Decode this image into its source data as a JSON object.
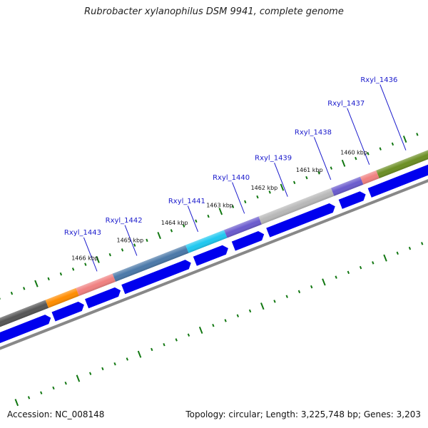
{
  "title": "Rubrobacter xylanophilus DSM 9941, complete genome",
  "footer": {
    "accession": "Accession: NC_008148",
    "summary": "Topology: circular; Length: 3,225,748 bp; Genes: 3,203"
  },
  "colors": {
    "cds_arrow": "#0000ee",
    "tick_green": "#117711",
    "backbone": "#888888",
    "gene_label": "#1a1acc"
  },
  "kbp_ticks": [
    {
      "label": "1460 kbp"
    },
    {
      "label": "1461 kbp"
    },
    {
      "label": "1462 kbp"
    },
    {
      "label": "1463 kbp"
    },
    {
      "label": "1464 kbp"
    },
    {
      "label": "1465 kbp"
    },
    {
      "label": "1466 kbp"
    }
  ],
  "genes": [
    {
      "label": "Rxyl_1436"
    },
    {
      "label": "Rxyl_1437"
    },
    {
      "label": "Rxyl_1438"
    },
    {
      "label": "Rxyl_1439"
    },
    {
      "label": "Rxyl_1440"
    },
    {
      "label": "Rxyl_1441"
    },
    {
      "label": "Rxyl_1442"
    },
    {
      "label": "Rxyl_1443"
    }
  ],
  "color_segments": [
    {
      "name": "segment-dark-gray",
      "color": "#555555"
    },
    {
      "name": "segment-orange",
      "color": "#ff8c00"
    },
    {
      "name": "segment-pink",
      "color": "#f08080"
    },
    {
      "name": "segment-steel-blue",
      "color": "#4a78a8"
    },
    {
      "name": "segment-cyan",
      "color": "#1ec8f0"
    },
    {
      "name": "segment-purple",
      "color": "#6a5acd"
    },
    {
      "name": "segment-light-gray",
      "color": "#b8b8b8"
    },
    {
      "name": "segment-purple-2",
      "color": "#6a5acd"
    },
    {
      "name": "segment-pink-2",
      "color": "#f08080"
    },
    {
      "name": "segment-olive",
      "color": "#6b8e23"
    }
  ]
}
